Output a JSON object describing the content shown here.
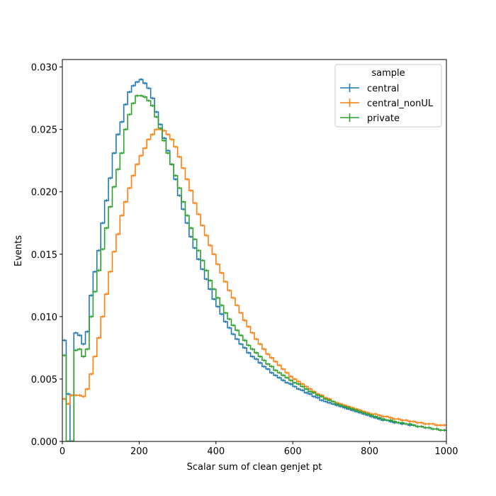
{
  "chart_data": {
    "type": "line",
    "xlabel": "Scalar sum of clean genjet pt",
    "ylabel": "Events",
    "xlim": [
      0,
      1000
    ],
    "ylim": [
      0,
      0.0306
    ],
    "xticks": [
      0,
      200,
      400,
      600,
      800,
      1000
    ],
    "yticks": [
      0.0,
      0.005,
      0.01,
      0.015,
      0.02,
      0.025,
      0.03
    ],
    "xtick_labels": [
      "0",
      "200",
      "400",
      "600",
      "800",
      "1000"
    ],
    "ytick_labels": [
      "0.000",
      "0.005",
      "0.010",
      "0.015",
      "0.020",
      "0.025",
      "0.030"
    ],
    "bin_width": 10,
    "grid": false,
    "legend": {
      "title": "sample",
      "position": "top-right"
    },
    "series": [
      {
        "name": "central",
        "color": "#1f77b4",
        "values": [
          0.0081,
          0.0038,
          0.0,
          0.0087,
          0.0085,
          0.0078,
          0.0088,
          0.0117,
          0.0136,
          0.0153,
          0.0175,
          0.0193,
          0.0211,
          0.0231,
          0.0246,
          0.0256,
          0.027,
          0.028,
          0.0285,
          0.0288,
          0.029,
          0.0287,
          0.0283,
          0.0275,
          0.0264,
          0.0254,
          0.0243,
          0.0233,
          0.0222,
          0.021,
          0.0197,
          0.0186,
          0.0175,
          0.0164,
          0.0155,
          0.0146,
          0.0138,
          0.013,
          0.0122,
          0.0114,
          0.0108,
          0.0102,
          0.0096,
          0.0091,
          0.0086,
          0.0082,
          0.0078,
          0.0075,
          0.0071,
          0.0068,
          0.0066,
          0.0063,
          0.006,
          0.0058,
          0.0055,
          0.0053,
          0.0051,
          0.0049,
          0.0047,
          0.0046,
          0.0044,
          0.0042,
          0.0041,
          0.0039,
          0.0038,
          0.0036,
          0.0035,
          0.0033,
          0.0032,
          0.0031,
          0.003,
          0.0029,
          0.0028,
          0.0027,
          0.0026,
          0.0025,
          0.0024,
          0.0023,
          0.0022,
          0.0021,
          0.002,
          0.0019,
          0.0018,
          0.0017,
          0.0017,
          0.0016,
          0.0015,
          0.0015,
          0.0014,
          0.0014,
          0.0013,
          0.0013,
          0.0012,
          0.0012,
          0.0011,
          0.0011,
          0.001,
          0.001,
          0.0009,
          0.0009
        ]
      },
      {
        "name": "central_nonUL",
        "color": "#ff7f0e",
        "values": [
          0.0034,
          0.003,
          0.0037,
          0.0037,
          0.0037,
          0.0036,
          0.0042,
          0.0054,
          0.0068,
          0.0083,
          0.01,
          0.0118,
          0.0136,
          0.0152,
          0.0166,
          0.0181,
          0.0192,
          0.0203,
          0.0213,
          0.0222,
          0.0229,
          0.0235,
          0.0242,
          0.0246,
          0.025,
          0.025,
          0.0249,
          0.0246,
          0.0242,
          0.0236,
          0.0228,
          0.0219,
          0.021,
          0.0201,
          0.0191,
          0.0182,
          0.0173,
          0.0165,
          0.0157,
          0.015,
          0.0142,
          0.0135,
          0.0128,
          0.0121,
          0.0115,
          0.0109,
          0.0103,
          0.0097,
          0.0092,
          0.0087,
          0.0082,
          0.0078,
          0.0074,
          0.007,
          0.0067,
          0.0064,
          0.0061,
          0.0058,
          0.0055,
          0.0052,
          0.005,
          0.0048,
          0.0046,
          0.0044,
          0.0042,
          0.004,
          0.0038,
          0.0037,
          0.0035,
          0.0034,
          0.0032,
          0.0031,
          0.003,
          0.0029,
          0.0028,
          0.0027,
          0.0026,
          0.0025,
          0.0024,
          0.0023,
          0.0022,
          0.0022,
          0.0021,
          0.002,
          0.002,
          0.0019,
          0.0018,
          0.0018,
          0.0017,
          0.0017,
          0.0016,
          0.0016,
          0.0015,
          0.0015,
          0.0014,
          0.0014,
          0.0014,
          0.0013,
          0.0013,
          0.0013
        ]
      },
      {
        "name": "private",
        "color": "#2ca02c",
        "values": [
          0.0069,
          0.0,
          0.0,
          0.0073,
          0.0074,
          0.0068,
          0.0074,
          0.01,
          0.012,
          0.0137,
          0.0154,
          0.0171,
          0.0188,
          0.0204,
          0.0218,
          0.0231,
          0.025,
          0.0262,
          0.0271,
          0.0277,
          0.0277,
          0.0276,
          0.0273,
          0.0269,
          0.026,
          0.0251,
          0.0241,
          0.0231,
          0.0222,
          0.0213,
          0.0203,
          0.0192,
          0.0181,
          0.0171,
          0.0162,
          0.0153,
          0.0145,
          0.0137,
          0.0129,
          0.0122,
          0.0115,
          0.0109,
          0.0103,
          0.0098,
          0.0093,
          0.0089,
          0.0085,
          0.0081,
          0.0077,
          0.0074,
          0.0071,
          0.0068,
          0.0065,
          0.0062,
          0.006,
          0.0057,
          0.0055,
          0.0053,
          0.0051,
          0.0049,
          0.0047,
          0.0046,
          0.0044,
          0.0042,
          0.004,
          0.0039,
          0.0037,
          0.0036,
          0.0034,
          0.0033,
          0.0032,
          0.003,
          0.0029,
          0.0028,
          0.0027,
          0.0026,
          0.0025,
          0.0024,
          0.0023,
          0.0022,
          0.0021,
          0.002,
          0.0019,
          0.0018,
          0.0017,
          0.0017,
          0.0016,
          0.0015,
          0.0015,
          0.0014,
          0.0014,
          0.0013,
          0.0012,
          0.0012,
          0.0011,
          0.0011,
          0.001,
          0.001,
          0.0009,
          0.0009
        ]
      }
    ]
  }
}
